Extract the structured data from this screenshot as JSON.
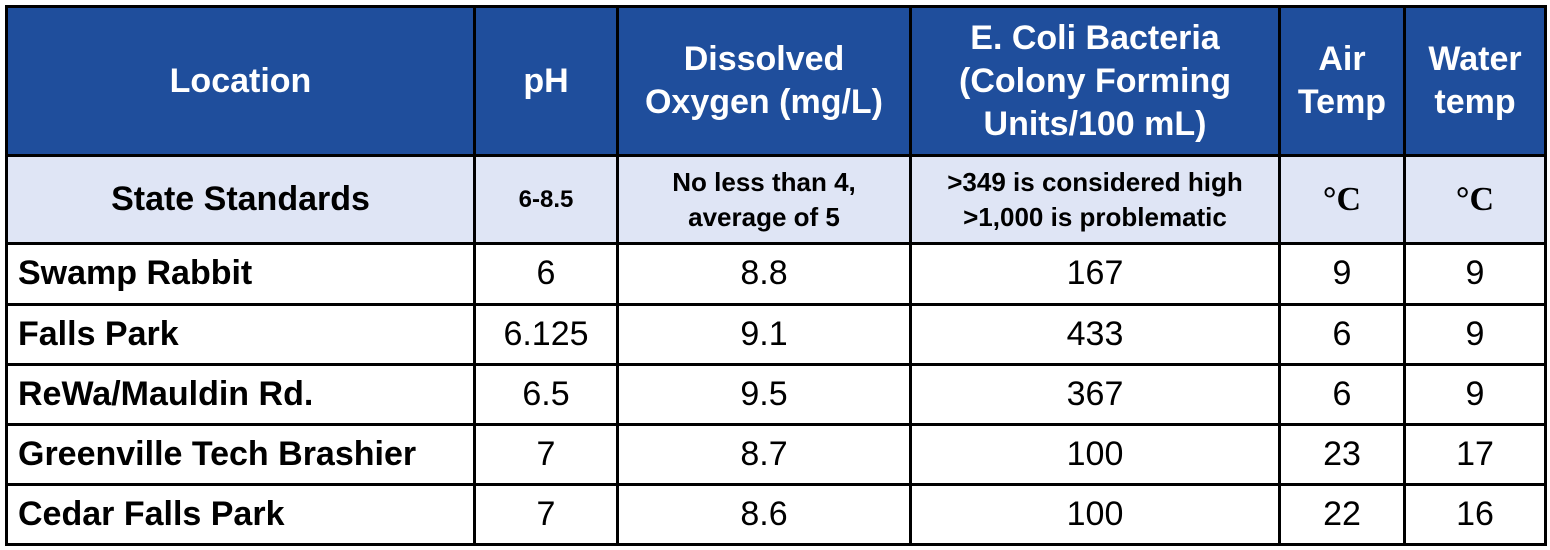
{
  "headers": {
    "location": "Location",
    "ph": "pH",
    "do_line1": "Dissolved",
    "do_line2": "Oxygen (mg/L)",
    "ecoli_line1": "E. Coli Bacteria",
    "ecoli_line2": "(Colony Forming",
    "ecoli_line3": "Units/100 mL)",
    "air_line1": "Air",
    "air_line2": "Temp",
    "water_line1": "Water",
    "water_line2": "temp"
  },
  "standards": {
    "label": "State Standards",
    "ph": "6-8.5",
    "do_line1": "No less than 4,",
    "do_line2": "average of 5",
    "ecoli_line1": ">349 is considered high",
    "ecoli_line2": ">1,000 is problematic",
    "air_unit": "°C",
    "water_unit": "°C"
  },
  "rows": [
    {
      "location": "Swamp Rabbit",
      "ph": "6",
      "do": "8.8",
      "ecoli": "167",
      "air": "9",
      "water": "9"
    },
    {
      "location": "Falls Park",
      "ph": "6.125",
      "do": "9.1",
      "ecoli": "433",
      "air": "6",
      "water": "9"
    },
    {
      "location": "ReWa/Mauldin Rd.",
      "ph": "6.5",
      "do": "9.5",
      "ecoli": "367",
      "air": "6",
      "water": "9"
    },
    {
      "location": "Greenville Tech Brashier",
      "ph": "7",
      "do": "8.7",
      "ecoli": "100",
      "air": "23",
      "water": "17"
    },
    {
      "location": "Cedar Falls Park",
      "ph": "7",
      "do": "8.6",
      "ecoli": "100",
      "air": "22",
      "water": "16"
    }
  ],
  "colors": {
    "header_bg": "#1f4e9c",
    "header_text": "#ffffff",
    "standards_bg": "#dfe5f5",
    "border": "#000000"
  }
}
